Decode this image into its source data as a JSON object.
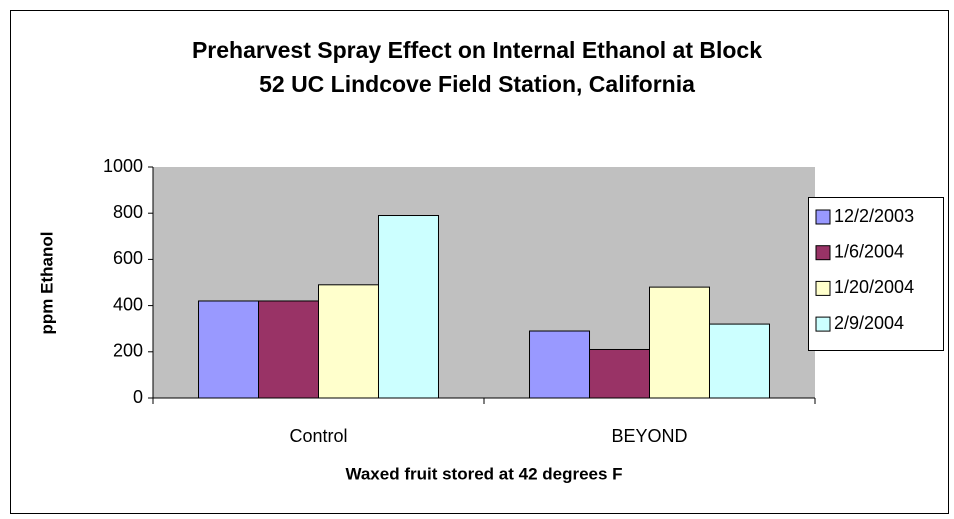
{
  "chart_data": {
    "type": "bar",
    "title": [
      "Preharvest Spray Effect on Internal Ethanol at Block",
      "52 UC Lindcove Field Station, California"
    ],
    "x_label": "Waxed fruit stored at 42 degrees F",
    "y_label": "ppm Ethanol",
    "categories": [
      "Control",
      "BEYOND"
    ],
    "series": [
      {
        "name": "12/2/2003",
        "color": "#9999ff",
        "values": [
          420,
          290
        ]
      },
      {
        "name": "1/6/2004",
        "color": "#993366",
        "values": [
          420,
          210
        ]
      },
      {
        "name": "1/20/2004",
        "color": "#ffffcc",
        "values": [
          490,
          480
        ]
      },
      {
        "name": "2/9/2004",
        "color": "#ccffff",
        "values": [
          790,
          320
        ]
      }
    ],
    "ylim": [
      0,
      1000
    ],
    "yticks": [
      0,
      200,
      400,
      600,
      800,
      1000
    ],
    "grid": false,
    "legend": "right",
    "plot_background": "#c0c0c0"
  }
}
